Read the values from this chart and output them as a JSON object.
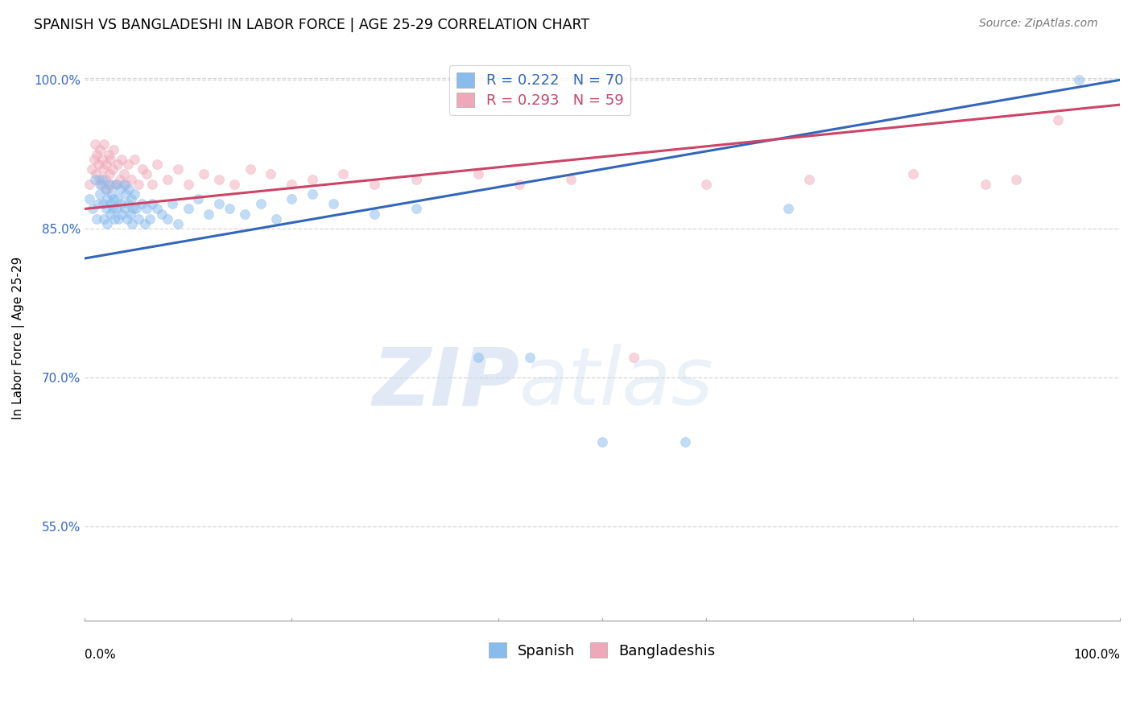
{
  "title": "SPANISH VS BANGLADESHI IN LABOR FORCE | AGE 25-29 CORRELATION CHART",
  "source": "Source: ZipAtlas.com",
  "ylabel": "In Labor Force | Age 25-29",
  "xlim": [
    0.0,
    1.0
  ],
  "ylim": [
    0.455,
    1.025
  ],
  "yticks": [
    0.55,
    0.7,
    0.85,
    1.0
  ],
  "ytick_labels": [
    "55.0%",
    "70.0%",
    "85.0%",
    "100.0%"
  ],
  "watermark_zip": "ZIP",
  "watermark_atlas": "atlas",
  "spanish_color": "#88bbee",
  "bangladeshi_color": "#f0a8b8",
  "spanish_line_color": "#3366bb",
  "bangladeshi_line_color": "#cc4466",
  "title_fontsize": 12.5,
  "source_fontsize": 10,
  "axis_label_fontsize": 11,
  "tick_fontsize": 11,
  "legend_fontsize": 13,
  "marker_size": 75,
  "marker_alpha": 0.5,
  "spanish_x": [
    0.005,
    0.008,
    0.01,
    0.012,
    0.013,
    0.015,
    0.015,
    0.017,
    0.018,
    0.019,
    0.02,
    0.021,
    0.022,
    0.022,
    0.023,
    0.025,
    0.025,
    0.026,
    0.027,
    0.028,
    0.029,
    0.03,
    0.031,
    0.032,
    0.033,
    0.034,
    0.035,
    0.036,
    0.038,
    0.039,
    0.04,
    0.041,
    0.042,
    0.043,
    0.044,
    0.045,
    0.046,
    0.047,
    0.048,
    0.05,
    0.052,
    0.055,
    0.058,
    0.06,
    0.063,
    0.065,
    0.07,
    0.075,
    0.08,
    0.085,
    0.09,
    0.1,
    0.11,
    0.12,
    0.13,
    0.14,
    0.155,
    0.17,
    0.185,
    0.2,
    0.22,
    0.24,
    0.28,
    0.32,
    0.38,
    0.43,
    0.5,
    0.58,
    0.68,
    0.96
  ],
  "spanish_y": [
    0.88,
    0.87,
    0.9,
    0.86,
    0.875,
    0.895,
    0.885,
    0.9,
    0.875,
    0.86,
    0.89,
    0.87,
    0.88,
    0.855,
    0.895,
    0.875,
    0.865,
    0.885,
    0.87,
    0.88,
    0.86,
    0.895,
    0.87,
    0.88,
    0.86,
    0.89,
    0.875,
    0.865,
    0.895,
    0.87,
    0.885,
    0.86,
    0.875,
    0.89,
    0.865,
    0.88,
    0.855,
    0.87,
    0.885,
    0.87,
    0.86,
    0.875,
    0.855,
    0.87,
    0.86,
    0.875,
    0.87,
    0.865,
    0.86,
    0.875,
    0.855,
    0.87,
    0.88,
    0.865,
    0.875,
    0.87,
    0.865,
    0.875,
    0.86,
    0.88,
    0.885,
    0.875,
    0.865,
    0.87,
    0.72,
    0.72,
    0.635,
    0.635,
    0.87,
    1.0
  ],
  "bangladeshi_x": [
    0.005,
    0.007,
    0.009,
    0.01,
    0.011,
    0.012,
    0.013,
    0.014,
    0.015,
    0.016,
    0.017,
    0.018,
    0.019,
    0.02,
    0.021,
    0.022,
    0.023,
    0.024,
    0.025,
    0.026,
    0.027,
    0.028,
    0.03,
    0.032,
    0.034,
    0.036,
    0.038,
    0.04,
    0.042,
    0.045,
    0.048,
    0.052,
    0.056,
    0.06,
    0.065,
    0.07,
    0.08,
    0.09,
    0.1,
    0.115,
    0.13,
    0.145,
    0.16,
    0.18,
    0.2,
    0.22,
    0.25,
    0.28,
    0.32,
    0.38,
    0.42,
    0.47,
    0.53,
    0.6,
    0.7,
    0.8,
    0.87,
    0.9,
    0.94
  ],
  "bangladeshi_y": [
    0.895,
    0.91,
    0.92,
    0.935,
    0.905,
    0.925,
    0.915,
    0.9,
    0.93,
    0.895,
    0.92,
    0.91,
    0.935,
    0.9,
    0.915,
    0.89,
    0.925,
    0.905,
    0.92,
    0.895,
    0.91,
    0.93,
    0.895,
    0.915,
    0.9,
    0.92,
    0.905,
    0.895,
    0.915,
    0.9,
    0.92,
    0.895,
    0.91,
    0.905,
    0.895,
    0.915,
    0.9,
    0.91,
    0.895,
    0.905,
    0.9,
    0.895,
    0.91,
    0.905,
    0.895,
    0.9,
    0.905,
    0.895,
    0.9,
    0.905,
    0.895,
    0.9,
    0.72,
    0.895,
    0.9,
    0.905,
    0.895,
    0.9,
    0.96
  ],
  "spanish_R": 0.222,
  "spanish_N": 70,
  "bangladeshi_R": 0.293,
  "bangladeshi_N": 59,
  "spanish_line_x0": 0.0,
  "spanish_line_y0": 0.82,
  "spanish_line_x1": 1.0,
  "spanish_line_y1": 1.0,
  "bangladeshi_line_x0": 0.0,
  "bangladeshi_line_y0": 0.87,
  "bangladeshi_line_x1": 1.0,
  "bangladeshi_line_y1": 0.975
}
